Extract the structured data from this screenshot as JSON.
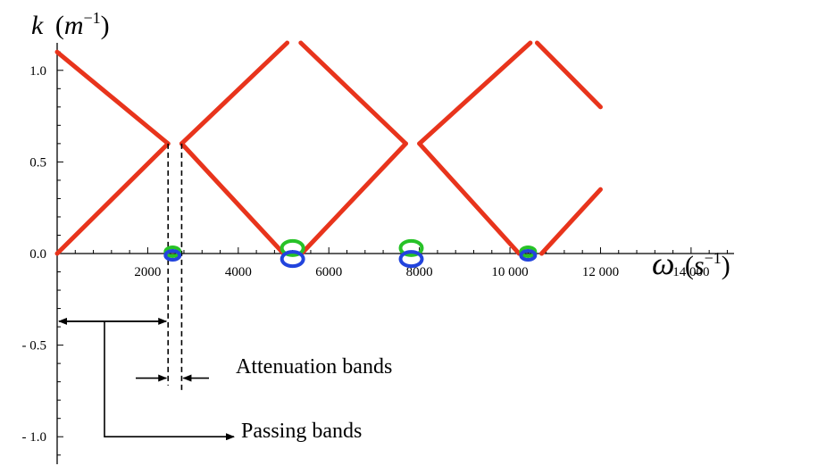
{
  "chart_data": {
    "type": "line",
    "xlabel": {
      "symbol": "ω",
      "unit_prefix": "(",
      "unit_base": "s",
      "unit_exp": "−1",
      "unit_suffix": ")"
    },
    "ylabel": {
      "symbol": "k",
      "unit_prefix": "(",
      "unit_base": "m",
      "unit_exp": "−1",
      "unit_suffix": ")"
    },
    "xlim": [
      0,
      15600
    ],
    "ylim": [
      -1.15,
      1.15
    ],
    "x_ticks": [
      {
        "value": 2000,
        "label": "2000"
      },
      {
        "value": 4000,
        "label": "4000"
      },
      {
        "value": 6000,
        "label": "6000"
      },
      {
        "value": 8000,
        "label": "8000"
      },
      {
        "value": 10000,
        "label": "10 000"
      },
      {
        "value": 12000,
        "label": "12 000"
      },
      {
        "value": 14000,
        "label": "14 000"
      }
    ],
    "y_ticks": [
      {
        "value": 1.0,
        "label": "1.0"
      },
      {
        "value": 0.5,
        "label": "0.5"
      },
      {
        "value": 0.0,
        "label": "0.0"
      },
      {
        "value": -0.5,
        "label": "- 0.5"
      },
      {
        "value": -1.0,
        "label": "- 1.0"
      }
    ],
    "series": [
      {
        "color": "#e8341c",
        "x": [
          0,
          2450
        ],
        "y": [
          1.1,
          0.6
        ]
      },
      {
        "color": "#e8341c",
        "x": [
          0,
          2450
        ],
        "y": [
          0.0,
          0.6
        ]
      },
      {
        "color": "#e8341c",
        "x": [
          2750,
          5000
        ],
        "y": [
          0.6,
          0.0
        ]
      },
      {
        "color": "#e8341c",
        "x": [
          2750,
          5080
        ],
        "y": [
          0.6,
          1.15
        ]
      },
      {
        "color": "#e8341c",
        "x": [
          5380,
          7700
        ],
        "y": [
          1.15,
          0.6
        ]
      },
      {
        "color": "#e8341c",
        "x": [
          5400,
          7700
        ],
        "y": [
          0.0,
          0.6
        ]
      },
      {
        "color": "#e8341c",
        "x": [
          8000,
          10200
        ],
        "y": [
          0.6,
          0.0
        ]
      },
      {
        "color": "#e8341c",
        "x": [
          8000,
          10450
        ],
        "y": [
          0.6,
          1.15
        ]
      },
      {
        "color": "#e8341c",
        "x": [
          10600,
          12000
        ],
        "y": [
          1.15,
          0.8
        ]
      },
      {
        "color": "#e8341c",
        "x": [
          10700,
          12000
        ],
        "y": [
          0.0,
          0.35
        ]
      }
    ],
    "circles": [
      {
        "x": 2550,
        "y": 0.01,
        "color": "#27c227"
      },
      {
        "x": 2550,
        "y": -0.01,
        "color": "#2244dd"
      },
      {
        "x": 5200,
        "y": 0.03,
        "color": "#27c227"
      },
      {
        "x": 5200,
        "y": -0.03,
        "color": "#2244dd"
      },
      {
        "x": 7820,
        "y": 0.03,
        "color": "#27c227"
      },
      {
        "x": 7820,
        "y": -0.03,
        "color": "#2244dd"
      },
      {
        "x": 10400,
        "y": 0.01,
        "color": "#27c227"
      },
      {
        "x": 10400,
        "y": -0.01,
        "color": "#2244dd"
      }
    ],
    "dashed_lines": [
      {
        "x": 2450,
        "y_from": 0.6,
        "y_to": -0.72
      },
      {
        "x": 2750,
        "y_from": 0.6,
        "y_to": -0.75
      }
    ],
    "annotations": {
      "attenuation": "Attenuation bands",
      "passing": "Passing bands"
    }
  }
}
